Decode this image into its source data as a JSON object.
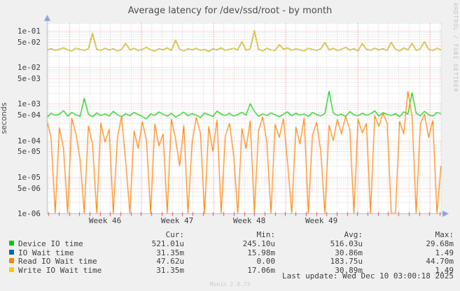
{
  "title": "Average latency for /dev/ssd/root - by month",
  "ylabel": "seconds",
  "side_text": "RRDTOOL / TOBI OETIKER",
  "watermark": "Munin 2.0.73",
  "last_update": "Last update: Wed Dec 10 03:00:18 2025",
  "colors": {
    "background": "#f0f0f0",
    "plot_background": "#ffffff",
    "grid_major": "rgba(240,60,60,0.5)",
    "grid_minor": "rgba(0,0,0,0.18)",
    "axis": "#b3bcd6",
    "arrow": "#8ea3da",
    "day_tick": "rgba(220,60,60,0.85)"
  },
  "legend": {
    "headers": [
      "Cur:",
      "Min:",
      "Avg:",
      "Max:"
    ],
    "rows": [
      {
        "label": "Device IO time",
        "color": "#00CC00",
        "cur": "521.01u",
        "min": "245.10u",
        "avg": "516.03u",
        "max": "29.68m"
      },
      {
        "label": "IO Wait time",
        "color": "#0066B3",
        "cur": "31.35m",
        "min": "15.98m",
        "avg": "30.86m",
        "max": "1.49"
      },
      {
        "label": "Read IO Wait time",
        "color": "#FF8000",
        "cur": "47.62u",
        "min": "0.00",
        "avg": "183.75u",
        "max": "44.70m"
      },
      {
        "label": "Write IO Wait time",
        "color": "#FFCC00",
        "cur": "31.35m",
        "min": "17.06m",
        "avg": "30.89m",
        "max": "1.49"
      }
    ]
  },
  "chart_data": {
    "type": "line",
    "title": "Average latency for /dev/ssd/root - by month",
    "xlabel": "",
    "ylabel": "seconds",
    "y_log": true,
    "ylim": [
      1e-06,
      0.162
    ],
    "grid": true,
    "legend_position": "bottom",
    "y_ticks": [
      {
        "label": "1e-01",
        "value": 0.1
      },
      {
        "label": "5e-02",
        "value": 0.05
      },
      {
        "label": "1e-02",
        "value": 0.01
      },
      {
        "label": "5e-03",
        "value": 0.005
      },
      {
        "label": "1e-03",
        "value": 0.001
      },
      {
        "label": "5e-04",
        "value": 0.0005
      },
      {
        "label": "1e-04",
        "value": 0.0001
      },
      {
        "label": "5e-05",
        "value": 5e-05
      },
      {
        "label": "1e-05",
        "value": 1e-05
      },
      {
        "label": "5e-06",
        "value": 5e-06
      },
      {
        "label": "1e-06",
        "value": 1e-06
      }
    ],
    "x_ticks": [
      {
        "label": "Week 46",
        "pos": 0.1475
      },
      {
        "label": "Week 47",
        "pos": 0.3305
      },
      {
        "label": "Week 48",
        "pos": 0.5135
      },
      {
        "label": "Week 49",
        "pos": 0.6965
      }
    ],
    "week_boundaries": [
      0.056,
      0.2395,
      0.4225,
      0.6055,
      0.7885,
      0.9715
    ],
    "grid_offset": 0.0037,
    "day_step": 0.026126,
    "series": [
      {
        "name": "Device IO time",
        "color": "#00CC00",
        "values": [
          0.00042,
          0.00055,
          0.00048,
          0.00052,
          0.00065,
          0.00046,
          0.00058,
          0.0005,
          0.00045,
          0.0014,
          0.00052,
          0.00044,
          0.00056,
          0.00048,
          0.00053,
          0.00046,
          0.00062,
          0.0005,
          0.00044,
          0.00054,
          0.00047,
          0.00058,
          0.00051,
          0.00045,
          0.00039,
          0.00053,
          0.00048,
          0.0006,
          0.00052,
          0.00046,
          0.00055,
          0.00043,
          0.0005,
          0.00059,
          0.00047,
          0.00054,
          0.00049,
          0.00042,
          0.00056,
          0.0005,
          0.00045,
          0.00063,
          0.00052,
          0.00048,
          0.00055,
          0.00046,
          0.00051,
          0.00058,
          0.00049,
          0.001,
          0.00062,
          0.00045,
          0.00053,
          0.00048,
          0.00056,
          0.0005,
          0.00044,
          0.00052,
          0.0006,
          0.00047,
          0.00055,
          0.00049,
          0.00053,
          0.00045,
          0.00058,
          0.00051,
          0.00046,
          0.00054,
          0.0022,
          0.00056,
          0.00048,
          0.00052,
          0.00045,
          0.00061,
          0.0005,
          0.00047,
          0.00055,
          0.00049,
          0.00053,
          0.00064,
          0.00046,
          0.00057,
          0.00051,
          0.00048,
          0.00054,
          0.00044,
          0.0006,
          0.00052,
          0.002,
          0.00055,
          0.00047,
          0.00062,
          0.0005,
          0.00046,
          0.00058,
          0.00053
        ]
      },
      {
        "name": "IO Wait time",
        "color": "#0066B3",
        "values_same_as": "Write IO Wait time"
      },
      {
        "name": "Read IO Wait time",
        "color": "#FF8000",
        "values": [
          0.00035,
          0.00012,
          1e-06,
          0.00022,
          6e-05,
          1e-06,
          0.0004,
          0.00015,
          3e-05,
          1e-06,
          0.00025,
          8e-05,
          1e-06,
          0.0003,
          9e-05,
          0.0002,
          1e-06,
          0.00012,
          0.00045,
          2.5e-05,
          1e-06,
          0.00018,
          6e-05,
          0.00032,
          0.0001,
          1e-06,
          0.00028,
          7e-05,
          0.00015,
          1e-06,
          0.00038,
          0.00011,
          2e-05,
          0.00026,
          1e-06,
          9e-05,
          0.00042,
          0.00016,
          1e-06,
          0.00024,
          5e-05,
          0.00036,
          1e-06,
          0.00013,
          0.00029,
          4e-05,
          1e-06,
          0.00021,
          6e-05,
          0.00034,
          1e-06,
          0.00018,
          0.00044,
          9e-05,
          1e-06,
          0.00027,
          0.00012,
          0.00039,
          2.5e-05,
          1e-06,
          0.00023,
          8e-05,
          0.00041,
          1e-06,
          0.00014,
          0.00031,
          5e-05,
          1e-06,
          0.00026,
          0.0001,
          0.00037,
          0.00015,
          0.00045,
          0.0002,
          1e-06,
          0.00038,
          0.00016,
          0.00029,
          1e-06,
          0.00048,
          0.00024,
          0.00055,
          0.0003,
          1e-06,
          1e-06,
          0.00033,
          0.00015,
          0.0022,
          0.00046,
          1e-06,
          0.00028,
          0.00052,
          0.00012,
          0.00035,
          1e-06,
          2e-05
        ]
      },
      {
        "name": "Write IO Wait time",
        "color": "#FFCC00",
        "values": [
          0.03,
          0.032,
          0.029,
          0.031,
          0.034,
          0.03,
          0.028,
          0.033,
          0.031,
          0.029,
          0.032,
          0.085,
          0.031,
          0.029,
          0.033,
          0.03,
          0.032,
          0.028,
          0.031,
          0.045,
          0.03,
          0.033,
          0.029,
          0.031,
          0.035,
          0.03,
          0.028,
          0.032,
          0.03,
          0.034,
          0.029,
          0.055,
          0.031,
          0.028,
          0.032,
          0.03,
          0.033,
          0.029,
          0.031,
          0.027,
          0.032,
          0.03,
          0.034,
          0.029,
          0.031,
          0.033,
          0.03,
          0.05,
          0.029,
          0.032,
          0.1,
          0.031,
          0.028,
          0.033,
          0.03,
          0.029,
          0.042,
          0.031,
          0.034,
          0.029,
          0.032,
          0.03,
          0.028,
          0.033,
          0.031,
          0.029,
          0.032,
          0.048,
          0.03,
          0.033,
          0.029,
          0.031,
          0.035,
          0.03,
          0.032,
          0.028,
          0.045,
          0.031,
          0.029,
          0.033,
          0.03,
          0.032,
          0.029,
          0.048,
          0.031,
          0.028,
          0.034,
          0.03,
          0.045,
          0.029,
          0.032,
          0.05,
          0.031,
          0.029,
          0.033,
          0.03
        ]
      }
    ],
    "draw_order": [
      "Device IO time",
      "IO Wait time",
      "Read IO Wait time",
      "Write IO Wait time"
    ]
  }
}
